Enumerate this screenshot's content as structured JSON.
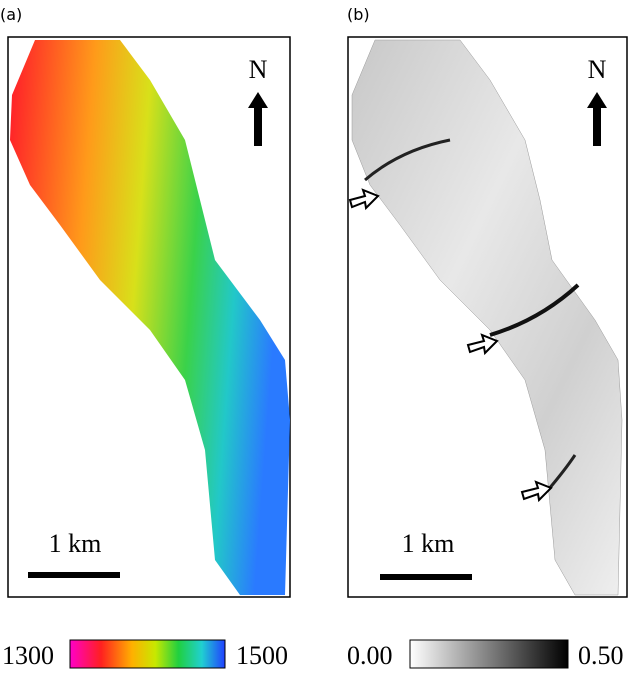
{
  "panels": [
    {
      "label": "(a)",
      "north": "N",
      "scale": "1 km"
    },
    {
      "label": "(b)",
      "north": "N",
      "scale": "1 km"
    }
  ],
  "colorbars": [
    {
      "min": "1300",
      "max": "1500"
    },
    {
      "min": "0.00",
      "max": "0.50"
    }
  ]
}
